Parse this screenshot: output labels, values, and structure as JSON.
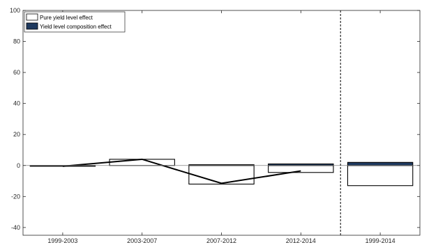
{
  "chart_data": {
    "type": "bar",
    "categories": [
      "1999-2003",
      "2003-2007",
      "2007-2012",
      "2012-2014",
      "1999-2014"
    ],
    "series": [
      {
        "name": "Pure yield level effect",
        "values": [
          -0.5,
          4,
          -12,
          -4.5,
          -13
        ],
        "color": "#ffffff"
      },
      {
        "name": "Yield level composition effect",
        "values": [
          0,
          0,
          0.5,
          1,
          2
        ],
        "color": "#1f3a5f"
      }
    ],
    "total_line": {
      "x": [
        "1999-2003",
        "2003-2007",
        "2007-2012",
        "2012-2014"
      ],
      "values": [
        -0.5,
        4,
        -11.5,
        -3.5
      ]
    },
    "yticks": [
      -40,
      -20,
      0,
      20,
      40,
      60,
      80,
      100
    ],
    "ylim": [
      -45,
      100
    ],
    "separator_after": "2012-2014",
    "title": "",
    "xlabel": "",
    "ylabel": "",
    "legend_position": "top-left",
    "grid": false
  }
}
